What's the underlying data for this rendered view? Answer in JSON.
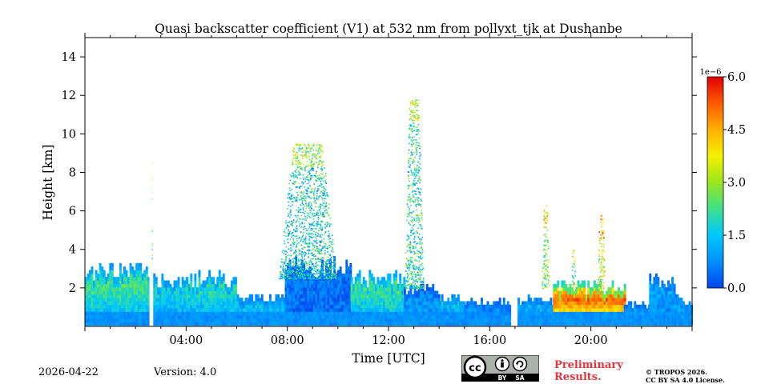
{
  "chart_data": {
    "type": "heatmap",
    "title": "Quasi backscatter coefficient (V1) at 532 nm from pollyxt_tjk at Dushanbe",
    "xlabel": "Time [UTC]",
    "ylabel": "Height [km]",
    "xlim": [
      0,
      24
    ],
    "ylim": [
      0,
      15
    ],
    "x_ticks": [
      {
        "value": 4,
        "label": "04:00"
      },
      {
        "value": 8,
        "label": "08:00"
      },
      {
        "value": 12,
        "label": "12:00"
      },
      {
        "value": 16,
        "label": "16:00"
      },
      {
        "value": 20,
        "label": "20:00"
      }
    ],
    "y_ticks": [
      2,
      4,
      6,
      8,
      10,
      12,
      14
    ],
    "colorbar": {
      "multiplier": "1e−6",
      "range": [
        0.0,
        6.0
      ],
      "ticks": [
        "0.0",
        "1.5",
        "3.0",
        "4.5",
        "6.0"
      ],
      "colormap": [
        "#0044ee",
        "#0090ff",
        "#00c8ff",
        "#3ee08a",
        "#9ae61e",
        "#f5f000",
        "#ffb000",
        "#ff5a00",
        "#e00000"
      ]
    },
    "data_gaps_utc": [
      [
        2.55,
        2.65
      ],
      [
        16.85,
        17.05
      ]
    ],
    "profile_segments": [
      {
        "t_start": 0.0,
        "t_end": 2.5,
        "top_km": 3.0,
        "value": 2.3,
        "peak_km": 2.0
      },
      {
        "t_start": 2.7,
        "t_end": 4.0,
        "top_km": 2.4,
        "value": 1.8,
        "peak_km": 1.8
      },
      {
        "t_start": 4.0,
        "t_end": 6.0,
        "top_km": 2.6,
        "value": 2.0,
        "peak_km": 1.9
      },
      {
        "t_start": 6.0,
        "t_end": 7.9,
        "top_km": 1.5,
        "value": 1.5,
        "peak_km": 1.0
      },
      {
        "t_start": 7.9,
        "t_end": 10.5,
        "top_km": 3.2,
        "value": 0.6,
        "peak_km": 3.0
      },
      {
        "t_start": 10.5,
        "t_end": 12.6,
        "top_km": 2.7,
        "value": 2.3,
        "peak_km": 2.0
      },
      {
        "t_start": 12.6,
        "t_end": 14.0,
        "top_km": 2.0,
        "value": 0.9,
        "peak_km": 1.0
      },
      {
        "t_start": 14.0,
        "t_end": 15.0,
        "top_km": 1.5,
        "value": 1.6,
        "peak_km": 1.0
      },
      {
        "t_start": 15.0,
        "t_end": 16.8,
        "top_km": 1.3,
        "value": 0.9,
        "peak_km": 1.0
      },
      {
        "t_start": 17.1,
        "t_end": 18.5,
        "top_km": 1.4,
        "value": 1.3,
        "peak_km": 1.0
      },
      {
        "t_start": 18.5,
        "t_end": 21.3,
        "top_km": 2.1,
        "value": 5.2,
        "peak_km": 1.3
      },
      {
        "t_start": 21.3,
        "t_end": 22.3,
        "top_km": 1.2,
        "value": 1.0,
        "peak_km": 0.8
      },
      {
        "t_start": 22.3,
        "t_end": 23.3,
        "top_km": 2.5,
        "value": 1.1,
        "peak_km": 1.8
      },
      {
        "t_start": 23.3,
        "t_end": 24.0,
        "top_km": 1.4,
        "value": 1.2,
        "peak_km": 1.0
      }
    ],
    "aerosol_plumes": [
      {
        "t_center": 8.8,
        "t_width": 2.3,
        "base_km": 2.5,
        "top_km": 9.5,
        "value": 1.6
      },
      {
        "t_center": 13.0,
        "t_width": 0.75,
        "base_km": 2.0,
        "top_km": 11.8,
        "value": 1.8
      },
      {
        "t_center": 18.2,
        "t_width": 0.3,
        "base_km": 2.0,
        "top_km": 6.4,
        "value": 2.6
      },
      {
        "t_center": 20.4,
        "t_width": 0.3,
        "base_km": 2.0,
        "top_km": 5.8,
        "value": 3.2
      },
      {
        "t_center": 19.3,
        "t_width": 0.15,
        "base_km": 2.0,
        "top_km": 4.4,
        "value": 2.2
      },
      {
        "t_center": 2.6,
        "t_width": 0.1,
        "base_km": 2.8,
        "top_km": 8.8,
        "value": 2.0
      }
    ]
  },
  "footer": {
    "date": "2026-04-22",
    "version": "Version: 4.0",
    "preliminary_line1": "Preliminary",
    "preliminary_line2": "Results.",
    "copyright_line1": "© TROPOS 2026.",
    "copyright_line2": "CC BY SA 4.0 License.",
    "cc_label": "cc",
    "by_label": "BY",
    "sa_label": "SA"
  }
}
